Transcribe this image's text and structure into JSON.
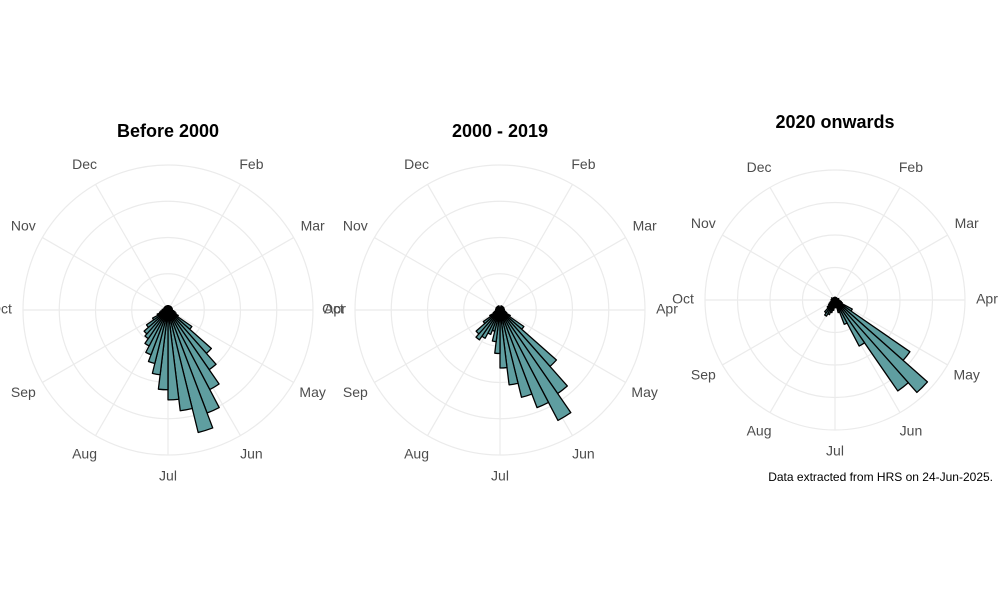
{
  "chart_data": [
    {
      "type": "polar_bar",
      "title": "Before 2000",
      "color": "#5f9ea0",
      "xlim": [
        0,
        52
      ],
      "xticks": [
        {
          "value": 4.33,
          "label": "Feb"
        },
        {
          "value": 8.67,
          "label": "Mar"
        },
        {
          "value": 13,
          "label": "Apr"
        },
        {
          "value": 17.33,
          "label": "May"
        },
        {
          "value": 21.67,
          "label": "Jun"
        },
        {
          "value": 26,
          "label": "Jul"
        },
        {
          "value": 30.33,
          "label": "Aug"
        },
        {
          "value": 34.67,
          "label": "Sep"
        },
        {
          "value": 39,
          "label": "Oct"
        },
        {
          "value": 43.33,
          "label": "Nov"
        },
        {
          "value": 47.67,
          "label": "Dec"
        }
      ],
      "rlim": [
        0,
        100
      ],
      "rticks": [
        25,
        50,
        75,
        100
      ],
      "x": [
        0,
        1,
        2,
        3,
        4,
        5,
        6,
        7,
        8,
        9,
        10,
        11,
        12,
        13,
        14,
        15,
        16,
        17,
        18,
        19,
        20,
        21,
        22,
        23,
        24,
        25,
        26,
        27,
        28,
        29,
        30,
        31,
        32,
        33,
        34,
        35,
        36,
        37,
        38,
        39,
        40,
        41,
        42,
        43,
        44,
        45,
        46,
        47,
        48,
        49,
        50,
        51
      ],
      "values": [
        3,
        2,
        3,
        2,
        3,
        2,
        3,
        3,
        2,
        3,
        3,
        2,
        3,
        3,
        4,
        5,
        6,
        8,
        20,
        40,
        50,
        62,
        76,
        87,
        70,
        62,
        55,
        45,
        38,
        33,
        28,
        24,
        22,
        18,
        12,
        8,
        6,
        5,
        4,
        4,
        3,
        3,
        3,
        3,
        2,
        3,
        2,
        3,
        2,
        3,
        2,
        3
      ]
    },
    {
      "type": "polar_bar",
      "title": "2000 - 2019",
      "color": "#5f9ea0",
      "xlim": [
        0,
        52
      ],
      "xticks": [
        {
          "value": 4.33,
          "label": "Feb"
        },
        {
          "value": 8.67,
          "label": "Mar"
        },
        {
          "value": 13,
          "label": "Apr"
        },
        {
          "value": 17.33,
          "label": "May"
        },
        {
          "value": 21.67,
          "label": "Jun"
        },
        {
          "value": 26,
          "label": "Jul"
        },
        {
          "value": 30.33,
          "label": "Aug"
        },
        {
          "value": 34.67,
          "label": "Sep"
        },
        {
          "value": 39,
          "label": "Oct"
        },
        {
          "value": 43.33,
          "label": "Nov"
        },
        {
          "value": 47.67,
          "label": "Dec"
        }
      ],
      "rlim": [
        0,
        100
      ],
      "rticks": [
        25,
        50,
        75,
        100
      ],
      "x": [
        0,
        1,
        2,
        3,
        4,
        5,
        6,
        7,
        8,
        9,
        10,
        11,
        12,
        13,
        14,
        15,
        16,
        17,
        18,
        19,
        20,
        21,
        22,
        23,
        24,
        25,
        26,
        27,
        28,
        29,
        30,
        31,
        32,
        33,
        34,
        35,
        36,
        37,
        38,
        39,
        40,
        41,
        42,
        43,
        44,
        45,
        46,
        47,
        48,
        49,
        50,
        51
      ],
      "values": [
        2,
        2,
        3,
        2,
        2,
        3,
        2,
        2,
        3,
        2,
        2,
        3,
        2,
        3,
        3,
        4,
        5,
        8,
        20,
        52,
        70,
        86,
        72,
        62,
        52,
        40,
        30,
        22,
        15,
        18,
        22,
        25,
        22,
        14,
        8,
        5,
        4,
        3,
        3,
        2,
        3,
        2,
        2,
        3,
        2,
        2,
        3,
        2,
        2,
        3,
        2,
        2
      ]
    },
    {
      "type": "polar_bar",
      "title": "2020 onwards",
      "color": "#5f9ea0",
      "xlim": [
        0,
        52
      ],
      "xticks": [
        {
          "value": 4.33,
          "label": "Feb"
        },
        {
          "value": 8.67,
          "label": "Mar"
        },
        {
          "value": 13,
          "label": "Apr"
        },
        {
          "value": 17.33,
          "label": "May"
        },
        {
          "value": 21.67,
          "label": "Jun"
        },
        {
          "value": 26,
          "label": "Jul"
        },
        {
          "value": 30.33,
          "label": "Aug"
        },
        {
          "value": 34.67,
          "label": "Sep"
        },
        {
          "value": 39,
          "label": "Oct"
        },
        {
          "value": 43.33,
          "label": "Nov"
        },
        {
          "value": 47.67,
          "label": "Dec"
        }
      ],
      "rlim": [
        0,
        100
      ],
      "rticks": [
        25,
        50,
        75,
        100
      ],
      "x": [
        0,
        1,
        2,
        3,
        4,
        5,
        6,
        7,
        8,
        9,
        10,
        11,
        12,
        13,
        14,
        15,
        16,
        17,
        18,
        19,
        20,
        21,
        22,
        23,
        24,
        25,
        26,
        27,
        28,
        29,
        30,
        31,
        32,
        33,
        34,
        35,
        36,
        37,
        38,
        39,
        40,
        41,
        42,
        43,
        44,
        45,
        46,
        47,
        48,
        49,
        50,
        51
      ],
      "values": [
        2,
        2,
        2,
        2,
        2,
        2,
        2,
        2,
        2,
        2,
        3,
        2,
        3,
        3,
        4,
        5,
        6,
        15,
        70,
        95,
        85,
        40,
        20,
        10,
        6,
        5,
        6,
        8,
        10,
        12,
        14,
        12,
        8,
        6,
        5,
        4,
        3,
        3,
        2,
        3,
        2,
        2,
        2,
        3,
        2,
        2,
        2,
        2,
        2,
        2,
        2,
        2
      ]
    }
  ],
  "caption": "Data extracted from HRS on 24-Jun-2025."
}
